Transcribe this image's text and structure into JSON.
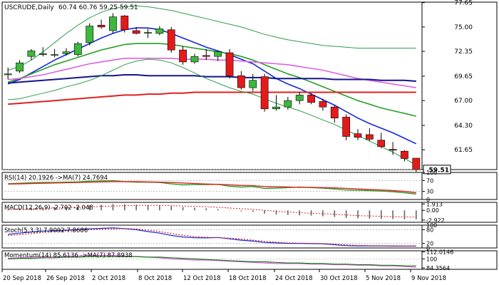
{
  "colors": {
    "bull": "#3cb83c",
    "bear": "#e41a1a",
    "ma_blue": "#1428d8",
    "ma_green": "#27a027",
    "ma_darkgreen": "#1a7a1a",
    "ma_pink": "#e060e0",
    "ma_navy": "#14148c",
    "ma_red": "#e02020",
    "band": "#2e9e4a",
    "axis_text": "#000000",
    "grid": "#d8d8d8",
    "price_tag_bg": "#ffffff"
  },
  "chart_data": [
    {
      "type": "candlestick",
      "title": "USCRUDE,Daily",
      "ohlc_readout": "60.74 60.76 59.25 59.51",
      "ylim": [
        59.5,
        77.7
      ],
      "y_ticks": [
        "77.65",
        "75.00",
        "72.35",
        "69.65",
        "67.00",
        "64.30",
        "61.65"
      ],
      "last_price_label": "59.51",
      "x_tick_labels": [
        "20 Sep 2018",
        "26 Sep 2018",
        "2 Oct 2018",
        "8 Oct 2018",
        "12 Oct 2018",
        "18 Oct 2018",
        "24 Oct 2018",
        "30 Oct 2018",
        "5 Nov 2018",
        "9 Nov 2018"
      ],
      "candles": [
        {
          "o": 69.8,
          "h": 70.6,
          "l": 69.3,
          "c": 69.9
        },
        {
          "o": 70.2,
          "h": 71.4,
          "l": 70.0,
          "c": 71.1
        },
        {
          "o": 71.8,
          "h": 72.6,
          "l": 71.4,
          "c": 72.4
        },
        {
          "o": 72.0,
          "h": 72.8,
          "l": 71.8,
          "c": 72.1
        },
        {
          "o": 72.0,
          "h": 72.6,
          "l": 71.7,
          "c": 72.0
        },
        {
          "o": 72.1,
          "h": 72.7,
          "l": 71.9,
          "c": 72.3
        },
        {
          "o": 72.0,
          "h": 73.4,
          "l": 71.8,
          "c": 73.2
        },
        {
          "o": 73.3,
          "h": 75.4,
          "l": 73.0,
          "c": 75.1
        },
        {
          "o": 75.2,
          "h": 75.8,
          "l": 74.8,
          "c": 75.0
        },
        {
          "o": 74.6,
          "h": 76.5,
          "l": 74.3,
          "c": 76.1
        },
        {
          "o": 76.2,
          "h": 76.3,
          "l": 74.4,
          "c": 74.7
        },
        {
          "o": 74.6,
          "h": 75.0,
          "l": 74.2,
          "c": 74.3
        },
        {
          "o": 74.4,
          "h": 74.8,
          "l": 73.8,
          "c": 74.4
        },
        {
          "o": 74.3,
          "h": 75.1,
          "l": 74.1,
          "c": 74.8
        },
        {
          "o": 74.7,
          "h": 75.0,
          "l": 72.2,
          "c": 72.5
        },
        {
          "o": 72.5,
          "h": 72.9,
          "l": 70.9,
          "c": 71.2
        },
        {
          "o": 71.2,
          "h": 72.1,
          "l": 71.0,
          "c": 71.8
        },
        {
          "o": 71.9,
          "h": 72.6,
          "l": 71.4,
          "c": 71.8
        },
        {
          "o": 71.8,
          "h": 72.4,
          "l": 71.3,
          "c": 72.3
        },
        {
          "o": 72.2,
          "h": 72.6,
          "l": 69.4,
          "c": 69.7
        },
        {
          "o": 69.7,
          "h": 70.2,
          "l": 68.2,
          "c": 68.4
        },
        {
          "o": 68.4,
          "h": 69.9,
          "l": 68.0,
          "c": 69.2
        },
        {
          "o": 69.6,
          "h": 69.9,
          "l": 65.8,
          "c": 66.1
        },
        {
          "o": 66.1,
          "h": 67.6,
          "l": 65.9,
          "c": 66.3
        },
        {
          "o": 66.3,
          "h": 67.4,
          "l": 66.0,
          "c": 67.0
        },
        {
          "o": 67.0,
          "h": 67.9,
          "l": 66.6,
          "c": 67.6
        },
        {
          "o": 67.6,
          "h": 67.8,
          "l": 66.6,
          "c": 66.8
        },
        {
          "o": 66.9,
          "h": 67.2,
          "l": 65.9,
          "c": 66.3
        },
        {
          "o": 66.3,
          "h": 66.5,
          "l": 64.6,
          "c": 65.1
        },
        {
          "o": 65.2,
          "h": 65.5,
          "l": 62.7,
          "c": 63.1
        },
        {
          "o": 63.4,
          "h": 63.9,
          "l": 62.7,
          "c": 63.0
        },
        {
          "o": 63.3,
          "h": 64.0,
          "l": 62.6,
          "c": 62.8
        },
        {
          "o": 62.7,
          "h": 63.5,
          "l": 61.8,
          "c": 62.0
        },
        {
          "o": 61.7,
          "h": 62.5,
          "l": 61.1,
          "c": 61.6
        },
        {
          "o": 61.5,
          "h": 61.6,
          "l": 60.4,
          "c": 60.7
        },
        {
          "o": 60.74,
          "h": 60.76,
          "l": 59.25,
          "c": 59.51
        }
      ],
      "series": [
        {
          "color_key": "ma_blue",
          "values": [
            68.8,
            69.3,
            70.0,
            70.7,
            71.4,
            72.0,
            72.6,
            73.2,
            73.8,
            74.3,
            74.7,
            74.9,
            74.9,
            74.7,
            74.3,
            73.8,
            73.3,
            72.8,
            72.4,
            72.0,
            71.5,
            71.0,
            70.2,
            69.4,
            68.8,
            68.3,
            67.7,
            67.1,
            66.5,
            65.8,
            65.1,
            64.5,
            64.0,
            63.5,
            62.9,
            62.3
          ]
        },
        {
          "color_key": "ma_green",
          "values": [
            69.0,
            69.4,
            69.9,
            70.4,
            70.9,
            71.3,
            71.7,
            72.1,
            72.5,
            72.8,
            73.1,
            73.2,
            73.2,
            73.2,
            73.1,
            72.9,
            72.7,
            72.5,
            72.3,
            72.1,
            71.8,
            71.4,
            70.9,
            70.4,
            69.9,
            69.5,
            69.0,
            68.5,
            68.0,
            67.5,
            67.0,
            66.6,
            66.2,
            65.9,
            65.6,
            65.3
          ]
        },
        {
          "color_key": "ma_pink",
          "values": [
            69.3,
            69.4,
            69.6,
            69.8,
            70.1,
            70.4,
            70.7,
            71.0,
            71.2,
            71.4,
            71.6,
            71.6,
            71.6,
            71.6,
            71.6,
            71.5,
            71.5,
            71.5,
            71.4,
            71.4,
            71.3,
            71.2,
            71.1,
            71.0,
            70.9,
            70.7,
            70.5,
            70.3,
            70.0,
            69.7,
            69.4,
            69.2,
            69.0,
            68.8,
            68.6,
            68.4
          ]
        },
        {
          "color_key": "ma_navy",
          "values": [
            68.9,
            69.0,
            69.1,
            69.2,
            69.3,
            69.4,
            69.5,
            69.6,
            69.7,
            69.7,
            69.8,
            69.8,
            69.7,
            69.7,
            69.7,
            69.7,
            69.7,
            69.6,
            69.6,
            69.6,
            69.5,
            69.5,
            69.5,
            69.4,
            69.4,
            69.4,
            69.4,
            69.4,
            69.3,
            69.3,
            69.3,
            69.3,
            69.2,
            69.2,
            69.2,
            69.1
          ]
        },
        {
          "color_key": "ma_red",
          "values": [
            66.6,
            66.7,
            66.8,
            66.9,
            67.0,
            67.1,
            67.2,
            67.3,
            67.4,
            67.5,
            67.6,
            67.6,
            67.7,
            67.7,
            67.8,
            67.8,
            67.9,
            67.9,
            67.9,
            67.9,
            67.9,
            67.9,
            67.9,
            67.9,
            67.9,
            67.9,
            67.9,
            67.9,
            67.9,
            67.9,
            67.9,
            67.9,
            67.9,
            67.9,
            67.9,
            67.9
          ]
        },
        {
          "color_key": "band",
          "values": [
            70.3,
            70.7,
            71.4,
            72.3,
            73.3,
            74.3,
            75.2,
            76.0,
            76.6,
            77.0,
            77.2,
            77.3,
            77.2,
            77.0,
            76.8,
            76.5,
            76.2,
            75.9,
            75.6,
            75.3,
            75.0,
            74.6,
            74.2,
            73.9,
            73.6,
            73.4,
            73.2,
            73.0,
            72.9,
            72.8,
            72.7,
            72.7,
            72.7,
            72.7,
            72.7,
            72.7
          ]
        },
        {
          "color_key": "band",
          "values": [
            67.1,
            67.2,
            67.5,
            67.8,
            68.1,
            68.5,
            68.8,
            69.2,
            69.7,
            70.3,
            70.9,
            71.3,
            71.5,
            71.4,
            71.1,
            70.6,
            70.0,
            69.4,
            68.9,
            68.4,
            68.0,
            67.7,
            67.2,
            66.7,
            66.3,
            65.9,
            65.4,
            64.9,
            64.4,
            63.8,
            63.2,
            62.6,
            62.0,
            61.4,
            60.7,
            60.0
          ]
        }
      ]
    },
    {
      "type": "line",
      "title": "RSI(14) 20.1926 ->MA(7) 24.7694",
      "ylim": [
        0,
        100
      ],
      "y_ticks": [
        "100",
        "70",
        "30",
        "0"
      ],
      "levels": [
        70,
        30
      ],
      "series": [
        {
          "color_key": "ma_green",
          "values": [
            58,
            60,
            62,
            63,
            63,
            64,
            65,
            68,
            69,
            70,
            66,
            64,
            64,
            63,
            58,
            54,
            55,
            55,
            56,
            49,
            46,
            48,
            41,
            42,
            44,
            46,
            44,
            42,
            39,
            35,
            34,
            33,
            31,
            29,
            25,
            20
          ]
        },
        {
          "color_key": "ma_red",
          "values": [
            57,
            58,
            59,
            60,
            61,
            62,
            63,
            64,
            65,
            66,
            66,
            66,
            65,
            64,
            63,
            61,
            59,
            57,
            56,
            54,
            52,
            51,
            48,
            47,
            46,
            45,
            45,
            44,
            43,
            41,
            39,
            37,
            35,
            33,
            30,
            25
          ]
        }
      ]
    },
    {
      "type": "bar",
      "title": "MACD(12,26,9) -2.702 -2.048",
      "ylim": [
        -3.6,
        2.4
      ],
      "y_ticks": [
        "1.913",
        "0.00",
        "-2.922"
      ],
      "values": [
        0.3,
        0.5,
        0.7,
        0.9,
        1.0,
        1.1,
        1.2,
        1.5,
        1.7,
        1.9,
        1.8,
        1.7,
        1.6,
        1.5,
        1.3,
        1.0,
        0.8,
        0.6,
        0.4,
        0.1,
        -0.3,
        -0.5,
        -1.0,
        -1.3,
        -1.4,
        -1.5,
        -1.6,
        -1.8,
        -2.0,
        -2.3,
        -2.4,
        -2.5,
        -2.6,
        -2.6,
        -2.7,
        -2.7
      ],
      "series": [
        {
          "color_key": "ma_red",
          "values": [
            0.2,
            0.3,
            0.4,
            0.6,
            0.7,
            0.8,
            0.9,
            1.0,
            1.2,
            1.3,
            1.4,
            1.5,
            1.5,
            1.5,
            1.4,
            1.3,
            1.2,
            1.1,
            0.9,
            0.7,
            0.5,
            0.3,
            0.0,
            -0.3,
            -0.5,
            -0.7,
            -0.9,
            -1.0,
            -1.2,
            -1.4,
            -1.6,
            -1.7,
            -1.8,
            -1.9,
            -2.0,
            -2.05
          ]
        }
      ]
    },
    {
      "type": "line",
      "title": "Stoch(5,3,3) 7.9092 7.8686",
      "ylim": [
        0,
        100
      ],
      "y_ticks": [
        "100",
        "80",
        "20",
        "0"
      ],
      "levels": [
        80,
        20
      ],
      "series": [
        {
          "color_key": "ma_blue",
          "values": [
            60,
            65,
            70,
            74,
            76,
            78,
            80,
            84,
            86,
            88,
            85,
            80,
            72,
            65,
            55,
            48,
            45,
            44,
            46,
            40,
            34,
            30,
            24,
            22,
            20,
            20,
            19,
            18,
            14,
            10,
            9,
            9,
            9,
            8,
            8,
            8
          ]
        },
        {
          "color_key": "ma_red",
          "values": [
            55,
            58,
            63,
            68,
            72,
            75,
            78,
            80,
            82,
            84,
            85,
            83,
            78,
            72,
            64,
            56,
            50,
            47,
            45,
            43,
            39,
            34,
            29,
            25,
            22,
            21,
            20,
            19,
            17,
            14,
            11,
            10,
            9,
            9,
            8,
            8
          ]
        }
      ]
    },
    {
      "type": "line",
      "title": "Momentum(14) 85.6136 ->MA(7) 87.8938",
      "ylim": [
        82,
        114
      ],
      "y_ticks": [
        "112.0146",
        "100",
        "84.3564"
      ],
      "levels": [
        100
      ],
      "series": [
        {
          "color_key": "ma_pink",
          "values": [
            101,
            102,
            103,
            104,
            104,
            105,
            105,
            106,
            106,
            106,
            105,
            104,
            103,
            102,
            100,
            99,
            98,
            98,
            97,
            96,
            95,
            94,
            93,
            92,
            92,
            92,
            91,
            91,
            90,
            90,
            89,
            89,
            88,
            88,
            87,
            85.6
          ]
        },
        {
          "color_key": "ma_darkgreen",
          "values": [
            100,
            101,
            101,
            102,
            102,
            103,
            103,
            104,
            104,
            104,
            104,
            104,
            103,
            103,
            102,
            101,
            100,
            99,
            98,
            97,
            96,
            95,
            95,
            94,
            93,
            93,
            92,
            92,
            91,
            91,
            90,
            90,
            89,
            89,
            88,
            87.9
          ]
        }
      ]
    }
  ]
}
